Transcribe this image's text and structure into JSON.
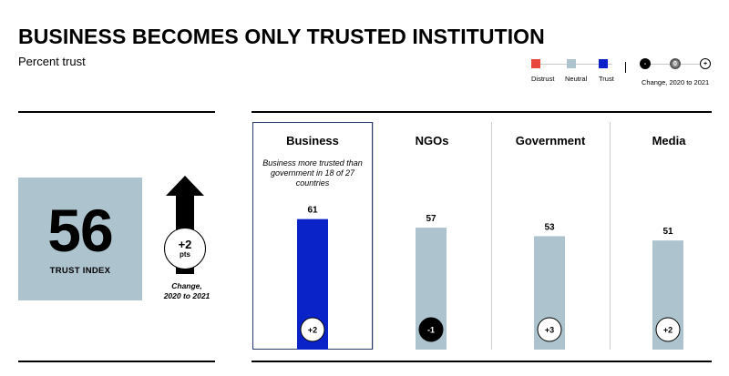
{
  "header": {
    "title": "BUSINESS BECOMES ONLY TRUSTED INSTITUTION",
    "subtitle": "Percent trust"
  },
  "legend": {
    "distrust_label": "Distrust",
    "neutral_label": "Neutral",
    "trust_label": "Trust",
    "change_label": "Change, 2020 to 2021",
    "change_symbols": [
      "-",
      "0",
      "+"
    ],
    "colors": {
      "distrust": "#e8463c",
      "neutral": "#adc4cf",
      "trust": "#0a23c8"
    }
  },
  "trust_index": {
    "value": "56",
    "label": "TRUST INDEX",
    "change": "+2",
    "change_unit": "pts",
    "change_caption_line1": "Change,",
    "change_caption_line2": "2020 to 2021"
  },
  "note": "Business more trusted than government in 18 of 27 countries",
  "chart_data": {
    "type": "bar",
    "categories": [
      "Business",
      "NGOs",
      "Government",
      "Media"
    ],
    "values": [
      61,
      57,
      53,
      51
    ],
    "changes": [
      "+2",
      "-1",
      "+3",
      "+2"
    ],
    "bar_colors": [
      "#0a23c8",
      "#adc4cf",
      "#adc4cf",
      "#adc4cf"
    ],
    "ylim": [
      0,
      100
    ],
    "grid": false
  }
}
